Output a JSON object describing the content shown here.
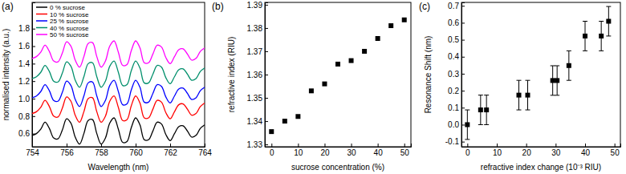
{
  "chart_data": [
    {
      "type": "line",
      "title": "(a)",
      "x_label": "Wavelength (nm)",
      "y_label": "normalised intensity (a.u.)",
      "x": [
        754,
        754.25,
        754.5,
        754.75,
        755,
        755.25,
        755.5,
        755.75,
        756,
        756.25,
        756.5,
        756.75,
        757,
        757.25,
        757.5,
        757.75,
        758,
        758.25,
        758.5,
        758.75,
        759,
        759.25,
        759.5,
        759.75,
        760,
        760.25,
        760.5,
        760.75,
        761,
        761.25,
        761.5,
        761.75,
        762,
        762.25,
        762.5,
        762.75,
        763,
        763.25,
        763.5,
        763.75,
        764
      ],
      "series": [
        {
          "name": "0 % sucrose",
          "color": "#000000",
          "values": [
            0.58,
            0.6,
            0.65,
            0.73,
            0.66,
            0.55,
            0.54,
            0.64,
            0.77,
            0.72,
            0.56,
            0.48,
            0.6,
            0.75,
            0.76,
            0.6,
            0.48,
            0.55,
            0.72,
            0.78,
            0.65,
            0.5,
            0.51,
            0.67,
            0.78,
            0.7,
            0.53,
            0.53,
            0.63,
            0.73,
            0.71,
            0.59,
            0.52,
            0.6,
            0.68,
            0.69,
            0.63,
            0.56,
            0.58,
            0.66,
            0.7
          ]
        },
        {
          "name": "10 % sucrose",
          "color": "#ff0000",
          "values": [
            0.83,
            0.85,
            0.9,
            0.98,
            0.91,
            0.8,
            0.79,
            0.89,
            1.02,
            0.97,
            0.81,
            0.73,
            0.85,
            1.0,
            1.01,
            0.85,
            0.73,
            0.8,
            0.97,
            1.03,
            0.9,
            0.75,
            0.76,
            0.92,
            1.03,
            0.95,
            0.78,
            0.78,
            0.88,
            0.98,
            0.96,
            0.84,
            0.77,
            0.85,
            0.93,
            0.94,
            0.88,
            0.81,
            0.83,
            0.91,
            0.95
          ]
        },
        {
          "name": "25 % sucrose",
          "color": "#0000ff",
          "values": [
            1.01,
            1.03,
            1.08,
            1.16,
            1.09,
            0.98,
            0.97,
            1.07,
            1.2,
            1.15,
            0.99,
            0.91,
            1.03,
            1.18,
            1.19,
            1.03,
            0.91,
            0.98,
            1.15,
            1.21,
            1.08,
            0.93,
            0.94,
            1.1,
            1.21,
            1.13,
            0.96,
            0.96,
            1.06,
            1.16,
            1.14,
            1.02,
            0.95,
            1.03,
            1.11,
            1.12,
            1.06,
            0.99,
            1.01,
            1.09,
            1.13
          ]
        },
        {
          "name": "40 % sucrose",
          "color": "#008f6b",
          "values": [
            1.23,
            1.25,
            1.3,
            1.38,
            1.31,
            1.2,
            1.19,
            1.29,
            1.42,
            1.37,
            1.21,
            1.13,
            1.25,
            1.4,
            1.41,
            1.25,
            1.13,
            1.2,
            1.37,
            1.43,
            1.3,
            1.15,
            1.16,
            1.32,
            1.43,
            1.35,
            1.18,
            1.18,
            1.28,
            1.38,
            1.36,
            1.24,
            1.17,
            1.25,
            1.33,
            1.34,
            1.28,
            1.21,
            1.23,
            1.31,
            1.35
          ]
        },
        {
          "name": "50 % sucrose",
          "color": "#ff00ff",
          "values": [
            1.46,
            1.48,
            1.53,
            1.61,
            1.54,
            1.43,
            1.42,
            1.52,
            1.65,
            1.6,
            1.44,
            1.36,
            1.48,
            1.63,
            1.64,
            1.48,
            1.36,
            1.43,
            1.6,
            1.66,
            1.53,
            1.38,
            1.39,
            1.55,
            1.66,
            1.58,
            1.41,
            1.41,
            1.51,
            1.61,
            1.59,
            1.47,
            1.4,
            1.48,
            1.56,
            1.57,
            1.51,
            1.44,
            1.46,
            1.54,
            1.58
          ]
        }
      ],
      "xlim": [
        754,
        764
      ],
      "xticks": [
        754,
        756,
        758,
        760,
        762,
        764
      ],
      "ylim": [
        0.45,
        2.1
      ],
      "yticks": [
        0.6,
        0.8,
        {
          "value": 1,
          "label": "1.0"
        },
        1.2,
        1.4,
        1.6,
        1.8
      ],
      "legend": "top-left",
      "grid": false
    },
    {
      "type": "scatter",
      "title": "(b)",
      "x_label": "sucrose concentration (%)",
      "y_label": "refractive index (RIU)",
      "x": [
        0,
        5,
        10,
        15,
        20,
        25,
        30,
        35,
        40,
        45,
        50
      ],
      "values": [
        1.3355,
        1.34,
        1.342,
        1.353,
        1.356,
        1.3645,
        1.366,
        1.37,
        1.3755,
        1.381,
        1.3835
      ],
      "color": "#000000",
      "marker": "square",
      "xlim": [
        -2.5,
        52.5
      ],
      "xticks": [
        0,
        10,
        20,
        30,
        40,
        50
      ],
      "ylim": [
        1.329,
        1.391
      ],
      "yticks": [
        1.33,
        1.34,
        1.35,
        1.36,
        1.37,
        1.38,
        1.39
      ],
      "grid": false
    },
    {
      "type": "scatter",
      "title": "(c)",
      "x_label": "refractive index change (10⁻³ RIU)",
      "y_label": "Resonance Shift (nm)",
      "x": [
        0,
        4.5,
        6.5,
        17.5,
        20.5,
        29,
        30.5,
        34.5,
        40,
        45.5,
        48
      ],
      "values": [
        0,
        0.087,
        0.087,
        0.174,
        0.174,
        0.26,
        0.26,
        0.348,
        0.522,
        0.522,
        0.609
      ],
      "errors": [
        0.087,
        0.087,
        0.087,
        0.087,
        0.087,
        0.087,
        0.087,
        0.087,
        0.087,
        0.087,
        0.087
      ],
      "color": "#000000",
      "marker": "square",
      "xlim": [
        -2,
        52
      ],
      "xticks": [
        0,
        10,
        20,
        30,
        40,
        50
      ],
      "ylim": [
        -0.13,
        0.72
      ],
      "yticks": [
        -0.1,
        {
          "value": 0,
          "label": "0.0"
        },
        0.1,
        0.2,
        0.3,
        0.4,
        0.5,
        0.6,
        0.7
      ],
      "grid": false
    }
  ]
}
